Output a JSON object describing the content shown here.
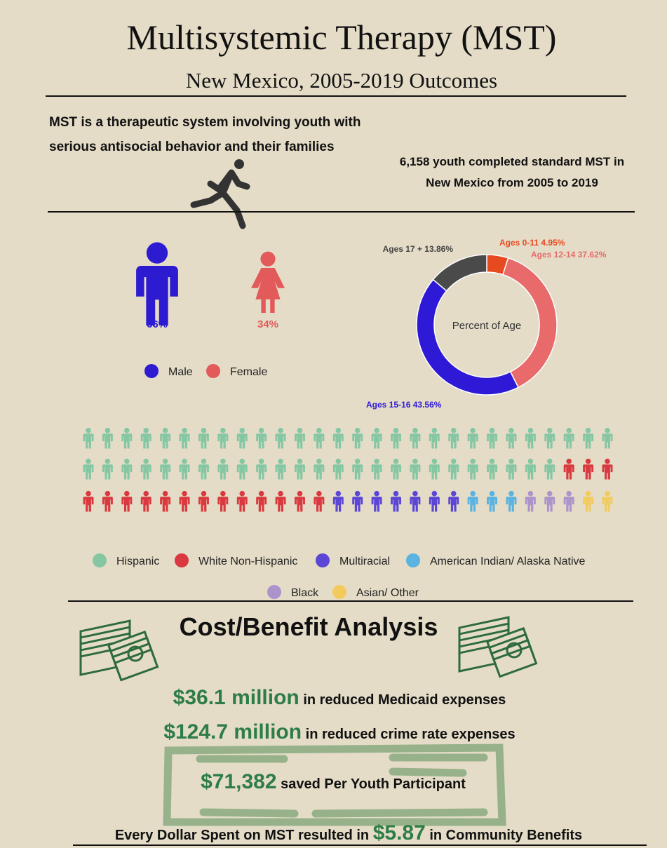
{
  "header": {
    "title": "Multisystemic Therapy (MST)",
    "subtitle": "New Mexico, 2005-2019 Outcomes"
  },
  "intro": {
    "description": [
      "MST is a therapeutic system involving youth with",
      "serious antisocial behavior and their families"
    ],
    "completed": [
      "6,158 youth completed standard MST in",
      "New Mexico from 2005 to 2019"
    ]
  },
  "gender": [
    {
      "name": "Male",
      "label": "66%",
      "color": "#2c1bd1"
    },
    {
      "name": "Female",
      "label": "34%",
      "color": "#e25a5a"
    }
  ],
  "age_chart": {
    "type": "donut",
    "center_label": "Percent of Age",
    "categories": [
      "Ages 0-11",
      "Ages 12-14",
      "Ages 15-16",
      "Ages 17 +"
    ],
    "values": [
      4.95,
      37.62,
      43.56,
      13.86
    ],
    "value_labels": [
      "4.95%",
      "37.62%",
      "43.56%",
      "13.86%"
    ],
    "colors": [
      "#e84a20",
      "#e86a6a",
      "#2e1ad6",
      "#4a4a4a"
    ]
  },
  "ethnicity": {
    "type": "pictograph",
    "per_row": 28,
    "groups": [
      {
        "name": "Hispanic",
        "count": 53,
        "color": "#86c7a3"
      },
      {
        "name": "White Non-Hispanic",
        "count": 16,
        "color": "#d9393f"
      },
      {
        "name": "Multiracial",
        "count": 7,
        "color": "#5b46d6"
      },
      {
        "name": "American Indian/ Alaska Native",
        "count": 3,
        "color": "#5ab3e0"
      },
      {
        "name": "Black",
        "count": 3,
        "color": "#ad93cc"
      },
      {
        "name": "Asian/ Other",
        "count": 2,
        "color": "#f2cb5c"
      }
    ]
  },
  "cost": {
    "title": "Cost/Benefit Analysis",
    "items": [
      {
        "amount": "$36.1 million",
        "text": "in reduced Medicaid expenses"
      },
      {
        "amount": "$124.7 million",
        "text": "in reduced crime rate expenses"
      },
      {
        "amount": "$71,382",
        "text": "saved Per Youth Participant"
      }
    ],
    "footer": {
      "prefix": "Every Dollar Spent on MST resulted in",
      "amount": "$5.87",
      "suffix": "in Community Benefits"
    }
  }
}
